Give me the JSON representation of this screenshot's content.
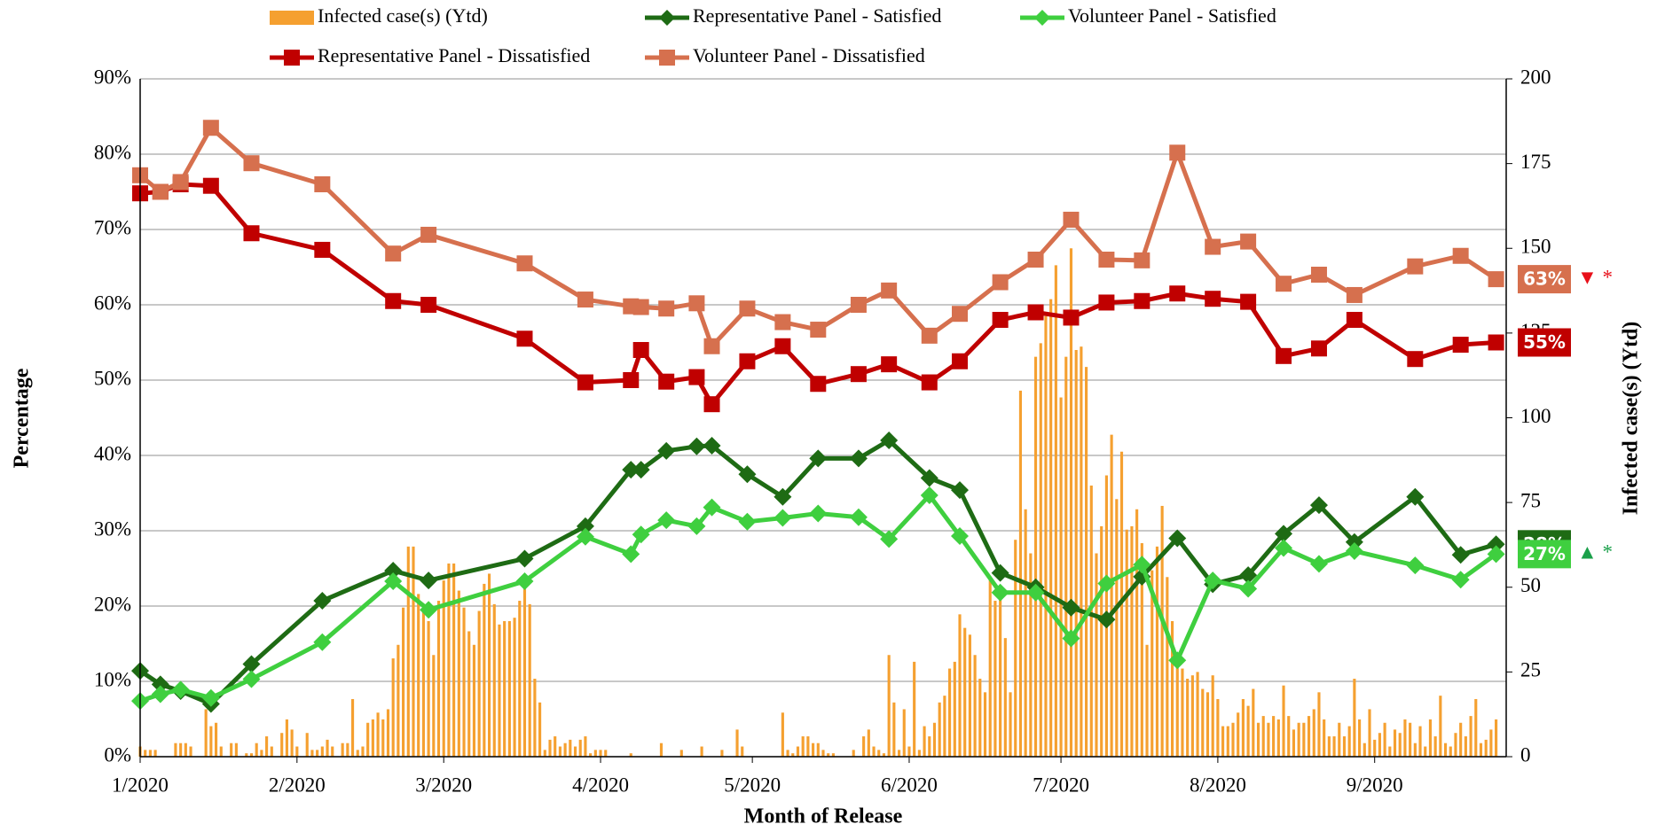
{
  "chart_data": {
    "type": "combo",
    "x_label": "Month of Release",
    "y_label": "Percentage",
    "y2_label": "Infected case(s) (Ytd)",
    "xlim": [
      0,
      270
    ],
    "xticks": [
      {
        "value": 0,
        "label": "1/2020"
      },
      {
        "value": 31,
        "label": "2/2020"
      },
      {
        "value": 60,
        "label": "3/2020"
      },
      {
        "value": 91,
        "label": "4/2020"
      },
      {
        "value": 121,
        "label": "5/2020"
      },
      {
        "value": 152,
        "label": "6/2020"
      },
      {
        "value": 182,
        "label": "7/2020"
      },
      {
        "value": 213,
        "label": "8/2020"
      },
      {
        "value": 244,
        "label": "9/2020"
      }
    ],
    "ylim": [
      0,
      90
    ],
    "yticks": [
      {
        "value": 0,
        "label": "0%"
      },
      {
        "value": 10,
        "label": "10%"
      },
      {
        "value": 20,
        "label": "20%"
      },
      {
        "value": 30,
        "label": "30%"
      },
      {
        "value": 40,
        "label": "40%"
      },
      {
        "value": 50,
        "label": "50%"
      },
      {
        "value": 60,
        "label": "60%"
      },
      {
        "value": 70,
        "label": "70%"
      },
      {
        "value": 80,
        "label": "80%"
      },
      {
        "value": 90,
        "label": "90%"
      }
    ],
    "y2lim": [
      0,
      200
    ],
    "y2ticks": [
      0,
      25,
      50,
      75,
      100,
      125,
      150,
      175,
      200
    ],
    "grid": true,
    "x": [
      0,
      4,
      8,
      14,
      22,
      36,
      50,
      57,
      76,
      88,
      97,
      99,
      104,
      110,
      113,
      120,
      127,
      134,
      142,
      148,
      156,
      162,
      170,
      177,
      184,
      191,
      198,
      205,
      212,
      219,
      226,
      233,
      240,
      252,
      261,
      268
    ],
    "series": [
      {
        "name": "Infected case(s) (Ytd)",
        "type": "bar",
        "axis": "y2",
        "color": "#f5a030",
        "x": [
          0,
          1,
          2,
          3,
          4,
          5,
          6,
          7,
          8,
          9,
          10,
          11,
          12,
          13,
          14,
          15,
          16,
          17,
          18,
          19,
          20,
          21,
          22,
          23,
          24,
          25,
          26,
          27,
          28,
          29,
          30,
          31,
          32,
          33,
          34,
          35,
          36,
          37,
          38,
          39,
          40,
          41,
          42,
          43,
          44,
          45,
          46,
          47,
          48,
          49,
          50,
          51,
          52,
          53,
          54,
          55,
          56,
          57,
          58,
          59,
          60,
          61,
          62,
          63,
          64,
          65,
          66,
          67,
          68,
          69,
          70,
          71,
          72,
          73,
          74,
          75,
          76,
          77,
          78,
          79,
          80,
          81,
          82,
          83,
          84,
          85,
          86,
          87,
          88,
          89,
          90,
          91,
          92,
          93,
          94,
          95,
          96,
          97,
          98,
          99,
          100,
          101,
          102,
          103,
          104,
          105,
          106,
          107,
          108,
          109,
          110,
          111,
          112,
          113,
          114,
          115,
          116,
          117,
          118,
          119,
          120,
          121,
          122,
          123,
          124,
          125,
          126,
          127,
          128,
          129,
          130,
          131,
          132,
          133,
          134,
          135,
          136,
          137,
          138,
          139,
          140,
          141,
          142,
          143,
          144,
          145,
          146,
          147,
          148,
          149,
          150,
          151,
          152,
          153,
          154,
          155,
          156,
          157,
          158,
          159,
          160,
          161,
          162,
          163,
          164,
          165,
          166,
          167,
          168,
          169,
          170,
          171,
          172,
          173,
          174,
          175,
          176,
          177,
          178,
          179,
          180,
          181,
          182,
          183,
          184,
          185,
          186,
          187,
          188,
          189,
          190,
          191,
          192,
          193,
          194,
          195,
          196,
          197,
          198,
          199,
          200,
          201,
          202,
          203,
          204,
          205,
          206,
          207,
          208,
          209,
          210,
          211,
          212,
          213,
          214,
          215,
          216,
          217,
          218,
          219,
          220,
          221,
          222,
          223,
          224,
          225,
          226,
          227,
          228,
          229,
          230,
          231,
          232,
          233,
          234,
          235,
          236,
          237,
          238,
          239,
          240,
          241,
          242,
          243,
          244,
          245,
          246,
          247,
          248,
          249,
          250,
          251,
          252,
          253,
          254,
          255,
          256,
          257,
          258,
          259,
          260,
          261,
          262,
          263,
          264,
          265,
          266,
          267,
          268
        ],
        "values": [
          3,
          2,
          2,
          2,
          0,
          0,
          0,
          4,
          4,
          4,
          3,
          0,
          0,
          14,
          9,
          10,
          3,
          0,
          4,
          4,
          0,
          1,
          1,
          4,
          2,
          6,
          3,
          0,
          7,
          11,
          8,
          3,
          0,
          7,
          2,
          2,
          3,
          5,
          3,
          0,
          4,
          4,
          17,
          2,
          3,
          10,
          11,
          13,
          11,
          14,
          29,
          33,
          44,
          62,
          62,
          48,
          44,
          40,
          30,
          46,
          52,
          57,
          57,
          49,
          44,
          37,
          33,
          43,
          51,
          54,
          45,
          39,
          40,
          40,
          41,
          46,
          52,
          45,
          23,
          16,
          2,
          5,
          6,
          3,
          4,
          5,
          3,
          5,
          6,
          1,
          2,
          2,
          2,
          0,
          0,
          0,
          0,
          1,
          0,
          0,
          0,
          0,
          0,
          4,
          0,
          0,
          0,
          2,
          0,
          0,
          0,
          3,
          0,
          0,
          0,
          2,
          0,
          0,
          8,
          3,
          0,
          0,
          0,
          0,
          0,
          0,
          0,
          13,
          2,
          1,
          3,
          6,
          6,
          4,
          4,
          2,
          1,
          1,
          0,
          0,
          0,
          2,
          0,
          6,
          8,
          3,
          2,
          1,
          30,
          16,
          2,
          14,
          3,
          28,
          2,
          9,
          6,
          10,
          16,
          18,
          26,
          28,
          42,
          38,
          36,
          30,
          23,
          19,
          52,
          46,
          50,
          35,
          19,
          64,
          108,
          73,
          60,
          118,
          122,
          130,
          135,
          145,
          106,
          118,
          150,
          120,
          121,
          115,
          80,
          60,
          68,
          83,
          95,
          76,
          90,
          67,
          68,
          73,
          63,
          33,
          55,
          62,
          74,
          53,
          40,
          27,
          26,
          23,
          24,
          25,
          20,
          19,
          24,
          17,
          9,
          9,
          10,
          13,
          17,
          15,
          20,
          10,
          12,
          10,
          12,
          11,
          21,
          12,
          8,
          10,
          10,
          12,
          14,
          19,
          11,
          6,
          6,
          10,
          6,
          9,
          23,
          11,
          4,
          14,
          5,
          7,
          10,
          3,
          8,
          7,
          11,
          10,
          4,
          9,
          3,
          11,
          6,
          18,
          4,
          3,
          7,
          10,
          6,
          12,
          17,
          4,
          5,
          8,
          11
        ]
      },
      {
        "name": "Representative Panel - Satisfied",
        "type": "line",
        "marker": "diamond",
        "color": "#1e6b14",
        "end_label": "28%",
        "values": [
          11.4,
          9.6,
          8.7,
          7,
          12.3,
          20.7,
          24.7,
          23.4,
          26.3,
          30.6,
          38.1,
          38.1,
          40.6,
          41.2,
          41.3,
          37.5,
          34.5,
          39.6,
          39.6,
          42,
          37,
          35.4,
          24.4,
          22.5,
          19.8,
          18.2,
          23.9,
          29,
          22.9,
          24.1,
          29.6,
          33.4,
          28.5,
          34.5,
          26.8,
          28.2
        ]
      },
      {
        "name": "Volunteer Panel - Satisfied",
        "type": "line",
        "marker": "diamond",
        "color": "#3fcf3f",
        "end_label": "27%",
        "note": "▲ *",
        "note_color": "#1aa04a",
        "values": [
          7.4,
          8.3,
          8.9,
          7.8,
          10.3,
          15.2,
          23.3,
          19.5,
          23.3,
          29.2,
          26.9,
          29.5,
          31.4,
          30.6,
          33.1,
          31.2,
          31.7,
          32.3,
          31.8,
          28.9,
          34.7,
          29.3,
          21.8,
          21.8,
          15.7,
          23,
          25.5,
          12.8,
          23.4,
          22.3,
          27.7,
          25.6,
          27.3,
          25.4,
          23.5,
          26.9
        ]
      },
      {
        "name": "Representative Panel - Dissatisfied",
        "type": "line",
        "marker": "square",
        "color": "#c00000",
        "end_label": "55%",
        "values": [
          74.8,
          75,
          76,
          75.8,
          69.5,
          67.3,
          60.5,
          60,
          55.5,
          49.7,
          50,
          54,
          49.8,
          50.4,
          46.8,
          52.5,
          54.5,
          49.5,
          50.8,
          52.1,
          49.7,
          52.5,
          58,
          59,
          58.3,
          60.3,
          60.5,
          61.5,
          60.8,
          60.4,
          53.2,
          54.2,
          58,
          52.8,
          54.7,
          55
        ]
      },
      {
        "name": "Volunteer Panel - Dissatisfied",
        "type": "line",
        "marker": "square",
        "color": "#d6704e",
        "end_label": "63%",
        "note": "▼ *",
        "note_color": "#e8101a",
        "values": [
          77.2,
          75,
          76.3,
          83.5,
          78.8,
          76,
          66.8,
          69.3,
          65.5,
          60.7,
          59.8,
          59.7,
          59.5,
          60.2,
          54.5,
          59.5,
          57.7,
          56.7,
          60,
          61.9,
          55.9,
          58.8,
          63,
          66,
          71.3,
          66,
          65.9,
          80.2,
          67.7,
          68.4,
          62.8,
          64,
          61.3,
          65.1,
          66.5,
          63.4
        ]
      }
    ]
  }
}
